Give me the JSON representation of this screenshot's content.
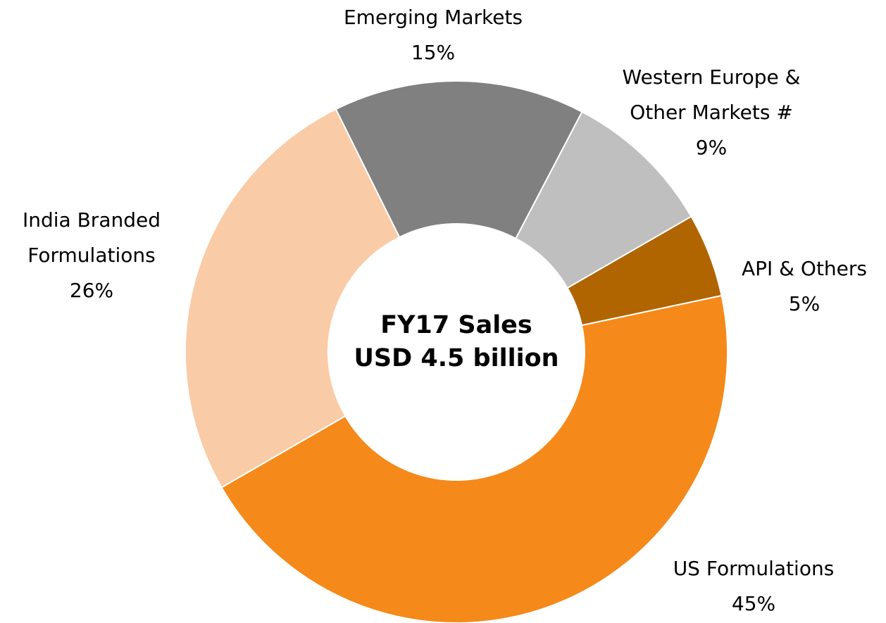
{
  "chart_data": {
    "type": "donut",
    "center_text": [
      "FY17 Sales",
      "USD 4.5 billion"
    ],
    "categories": [
      "US Formulations",
      "India Branded Formulations",
      "Emerging Markets",
      "Western Europe & Other Markets #",
      "API & Others"
    ],
    "values": [
      45,
      26,
      15,
      9,
      5
    ],
    "value_labels": [
      "45%",
      "26%",
      "15%",
      "9%",
      "5%"
    ],
    "colors": [
      "#f5891a",
      "#f9cba6",
      "#808080",
      "#bfbfbf",
      "#b06500"
    ]
  }
}
